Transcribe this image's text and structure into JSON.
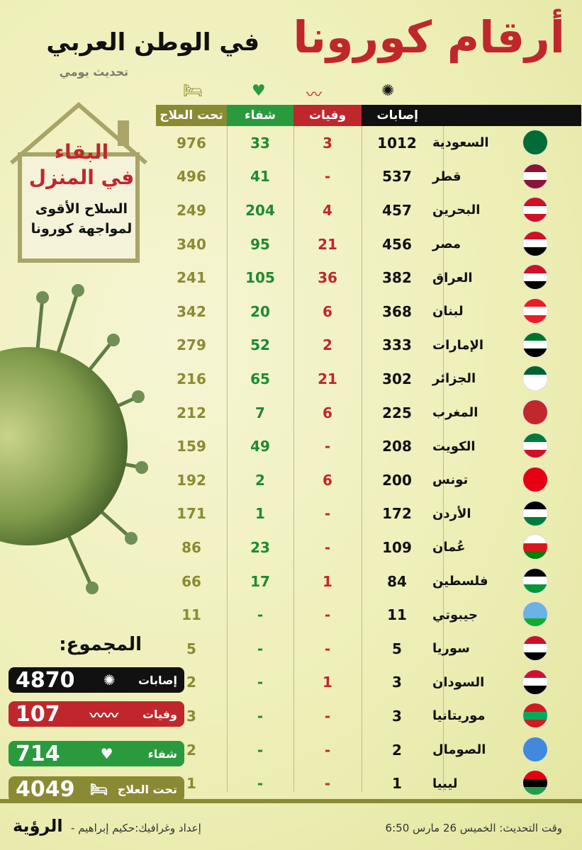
{
  "header": {
    "title_main": "أرقام كورونا",
    "title_sub": "في الوطن العربي",
    "update_note": "تحديث يومي"
  },
  "columns": {
    "cases": "إصابات",
    "deaths": "وفيات",
    "recovered": "شفاء",
    "treatment": "تحت العلاج"
  },
  "house": {
    "line1": "البقاء",
    "line2": "في المنزل",
    "line3": "السلاح الأقوى",
    "line4": "لمواجهة كورونا"
  },
  "rows": [
    {
      "country": "السعودية",
      "cases": "1012",
      "deaths": "3",
      "recovered": "33",
      "treatment": "976",
      "flag": [
        "#006c35",
        "#006c35",
        "#006c35"
      ]
    },
    {
      "country": "قطر",
      "cases": "537",
      "deaths": "-",
      "recovered": "41",
      "treatment": "496",
      "flag": [
        "#8a1538",
        "#ffffff",
        "#8a1538"
      ]
    },
    {
      "country": "البحرين",
      "cases": "457",
      "deaths": "4",
      "recovered": "204",
      "treatment": "249",
      "flag": [
        "#ce1126",
        "#ffffff",
        "#ce1126"
      ]
    },
    {
      "country": "مصر",
      "cases": "456",
      "deaths": "21",
      "recovered": "95",
      "treatment": "340",
      "flag": [
        "#ce1126",
        "#ffffff",
        "#000000"
      ]
    },
    {
      "country": "العراق",
      "cases": "382",
      "deaths": "36",
      "recovered": "105",
      "treatment": "241",
      "flag": [
        "#ce1126",
        "#ffffff",
        "#000000"
      ]
    },
    {
      "country": "لبنان",
      "cases": "368",
      "deaths": "6",
      "recovered": "20",
      "treatment": "342",
      "flag": [
        "#ed1c24",
        "#ffffff",
        "#ed1c24"
      ]
    },
    {
      "country": "الإمارات",
      "cases": "333",
      "deaths": "2",
      "recovered": "52",
      "treatment": "279",
      "flag": [
        "#00732f",
        "#ffffff",
        "#000000"
      ]
    },
    {
      "country": "الجزائر",
      "cases": "302",
      "deaths": "21",
      "recovered": "65",
      "treatment": "216",
      "flag": [
        "#006233",
        "#ffffff",
        "#ffffff"
      ]
    },
    {
      "country": "المغرب",
      "cases": "225",
      "deaths": "6",
      "recovered": "7",
      "treatment": "212",
      "flag": [
        "#c1272d",
        "#c1272d",
        "#c1272d"
      ]
    },
    {
      "country": "الكويت",
      "cases": "208",
      "deaths": "-",
      "recovered": "49",
      "treatment": "159",
      "flag": [
        "#007a3d",
        "#ffffff",
        "#ce1126"
      ]
    },
    {
      "country": "تونس",
      "cases": "200",
      "deaths": "6",
      "recovered": "2",
      "treatment": "192",
      "flag": [
        "#e70013",
        "#e70013",
        "#e70013"
      ]
    },
    {
      "country": "الأردن",
      "cases": "172",
      "deaths": "-",
      "recovered": "1",
      "treatment": "171",
      "flag": [
        "#000000",
        "#ffffff",
        "#007a3d"
      ]
    },
    {
      "country": "عُمان",
      "cases": "109",
      "deaths": "-",
      "recovered": "23",
      "treatment": "86",
      "flag": [
        "#ffffff",
        "#db161b",
        "#008000"
      ]
    },
    {
      "country": "فلسطين",
      "cases": "84",
      "deaths": "1",
      "recovered": "17",
      "treatment": "66",
      "flag": [
        "#000000",
        "#ffffff",
        "#009736"
      ]
    },
    {
      "country": "جيبوتي",
      "cases": "11",
      "deaths": "-",
      "recovered": "-",
      "treatment": "11",
      "flag": [
        "#6ab2e7",
        "#6ab2e7",
        "#12ad2b"
      ]
    },
    {
      "country": "سوريا",
      "cases": "5",
      "deaths": "-",
      "recovered": "-",
      "treatment": "5",
      "flag": [
        "#ce1126",
        "#ffffff",
        "#000000"
      ]
    },
    {
      "country": "السودان",
      "cases": "3",
      "deaths": "1",
      "recovered": "-",
      "treatment": "2",
      "flag": [
        "#d21034",
        "#ffffff",
        "#000000"
      ]
    },
    {
      "country": "موريتانيا",
      "cases": "3",
      "deaths": "-",
      "recovered": "-",
      "treatment": "3",
      "flag": [
        "#d01c1f",
        "#00a95c",
        "#d01c1f"
      ]
    },
    {
      "country": "الصومال",
      "cases": "2",
      "deaths": "-",
      "recovered": "-",
      "treatment": "2",
      "flag": [
        "#4189dd",
        "#4189dd",
        "#4189dd"
      ]
    },
    {
      "country": "ليبيا",
      "cases": "1",
      "deaths": "-",
      "recovered": "-",
      "treatment": "1",
      "flag": [
        "#e70013",
        "#000000",
        "#239e46"
      ]
    }
  ],
  "totals": {
    "title": "المجموع:",
    "cases_label": "إصابات",
    "cases_value": "4870",
    "deaths_label": "وفيات",
    "deaths_value": "107",
    "recovered_label": "شفاء",
    "recovered_value": "714",
    "treatment_label": "تحت العلاج",
    "treatment_value": "4049"
  },
  "footer": {
    "update_time": "وقت التحديث: الخميس 26 مارس 6:50",
    "credit": "إعداد وغرافيك:حكيم إبراهيم -",
    "logo": "الرؤية"
  },
  "colors": {
    "red": "#c0272d",
    "green": "#2a9a3e",
    "olive": "#8b8a34",
    "black": "#111111"
  }
}
